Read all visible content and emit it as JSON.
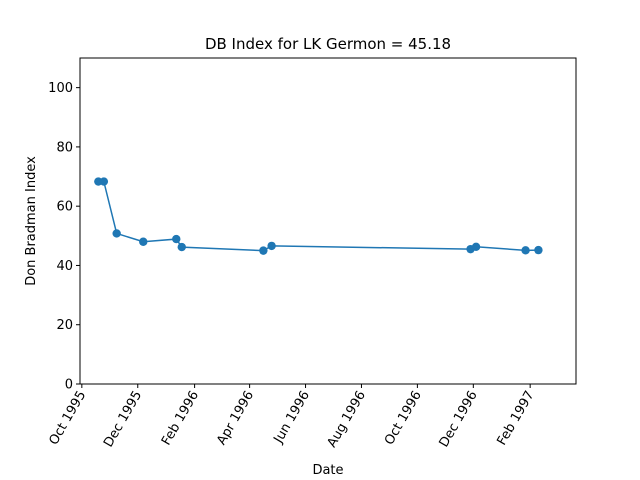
{
  "chart_data": {
    "type": "line",
    "title": "DB Index for LK Germon = 45.18",
    "xlabel": "Date",
    "ylabel": "Don Bradman Index",
    "ylim": [
      0,
      110
    ],
    "xlim": [
      "1995-09-29",
      "1997-03-23"
    ],
    "yticks": [
      0,
      20,
      40,
      60,
      80,
      100
    ],
    "xticks": [
      {
        "date": "1995-10-01",
        "label": "Oct 1995"
      },
      {
        "date": "1995-12-01",
        "label": "Dec 1995"
      },
      {
        "date": "1996-02-01",
        "label": "Feb 1996"
      },
      {
        "date": "1996-04-01",
        "label": "Apr 1996"
      },
      {
        "date": "1996-06-01",
        "label": "Jun 1996"
      },
      {
        "date": "1996-08-01",
        "label": "Aug 1996"
      },
      {
        "date": "1996-10-01",
        "label": "Oct 1996"
      },
      {
        "date": "1996-12-01",
        "label": "Dec 1996"
      },
      {
        "date": "1997-02-01",
        "label": "Feb 1997"
      }
    ],
    "grid": false,
    "series": [
      {
        "color": "#1f77b4",
        "points": [
          {
            "x": "1995-10-19",
            "y": 68.3
          },
          {
            "x": "1995-10-25",
            "y": 68.3
          },
          {
            "x": "1995-11-08",
            "y": 50.8
          },
          {
            "x": "1995-12-07",
            "y": 48.0
          },
          {
            "x": "1996-01-12",
            "y": 48.9
          },
          {
            "x": "1996-01-18",
            "y": 46.2
          },
          {
            "x": "1996-04-16",
            "y": 45.0
          },
          {
            "x": "1996-04-25",
            "y": 46.6
          },
          {
            "x": "1996-11-28",
            "y": 45.5
          },
          {
            "x": "1996-12-04",
            "y": 46.3
          },
          {
            "x": "1997-01-27",
            "y": 45.1
          },
          {
            "x": "1997-02-10",
            "y": 45.18
          }
        ]
      }
    ]
  }
}
